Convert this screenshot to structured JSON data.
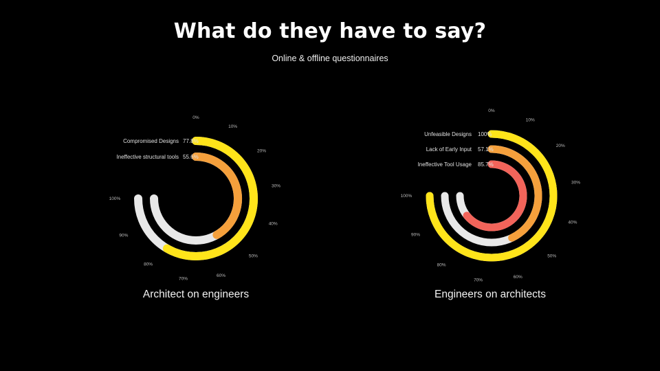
{
  "header": {
    "title": "What do they have to say?",
    "subtitle": "Online & offline questionnaires"
  },
  "chart_data": [
    {
      "type": "radial-bar",
      "caption": "Architect on engineers",
      "ticks": [
        "0%",
        "10%",
        "20%",
        "30%",
        "40%",
        "50%",
        "60%",
        "70%",
        "80%",
        "90%",
        "100%"
      ],
      "series": [
        {
          "name": "Compromised Designs",
          "value": 77.8,
          "label": "77.8%",
          "color": "#FFE41A"
        },
        {
          "name": "Ineffective structural tools",
          "value": 55.6,
          "label": "55.6%",
          "color": "#F5A03C"
        }
      ],
      "track_color": "#E8E8E8",
      "max": 100
    },
    {
      "type": "radial-bar",
      "caption": "Engineers on architects",
      "ticks": [
        "0%",
        "10%",
        "20%",
        "30%",
        "40%",
        "50%",
        "60%",
        "70%",
        "80%",
        "90%",
        "100%"
      ],
      "series": [
        {
          "name": "Unfeasible Designs",
          "value": 100,
          "label": "100%",
          "color": "#FFE41A"
        },
        {
          "name": "Lack of Early Input",
          "value": 57.1,
          "label": "57.1%",
          "color": "#F5A03C"
        },
        {
          "name": "Ineffective Tool Usage",
          "value": 85.7,
          "label": "85.7%",
          "color": "#F2645A"
        }
      ],
      "track_color": "#E8E8E8",
      "max": 100
    }
  ]
}
